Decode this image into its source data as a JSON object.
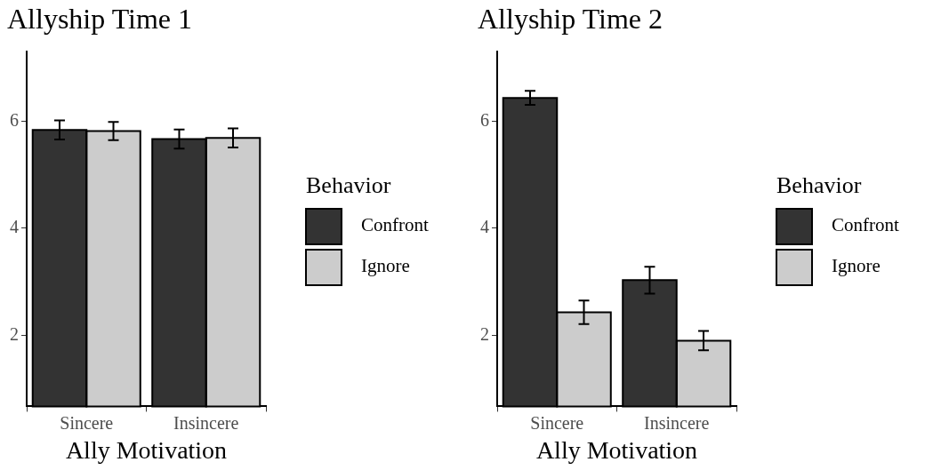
{
  "chart_data": [
    {
      "type": "bar",
      "title": "Allyship Time 1",
      "xlabel": "Ally Motivation",
      "categories": [
        "Sincere",
        "Insincere"
      ],
      "series": [
        {
          "name": "Confront",
          "color": "#333333",
          "values": [
            5.84,
            5.67
          ],
          "errors": [
            0.18,
            0.18
          ]
        },
        {
          "name": "Ignore",
          "color": "#cccccc",
          "values": [
            5.82,
            5.69
          ],
          "errors": [
            0.17,
            0.18
          ]
        }
      ],
      "ylim": [
        0.67,
        7.3
      ],
      "yticks": [
        2,
        4,
        6
      ],
      "legend": "right",
      "legend_title": "Behavior"
    },
    {
      "type": "bar",
      "title": "Allyship Time 2",
      "xlabel": "Ally Motivation",
      "categories": [
        "Sincere",
        "Insincere"
      ],
      "series": [
        {
          "name": "Confront",
          "color": "#333333",
          "values": [
            6.44,
            3.03
          ],
          "errors": [
            0.13,
            0.25
          ]
        },
        {
          "name": "Ignore",
          "color": "#cccccc",
          "values": [
            2.43,
            1.9
          ],
          "errors": [
            0.22,
            0.18
          ]
        }
      ],
      "ylim": [
        0.67,
        7.3
      ],
      "yticks": [
        2,
        4,
        6
      ],
      "legend": "right",
      "legend_title": "Behavior"
    }
  ]
}
